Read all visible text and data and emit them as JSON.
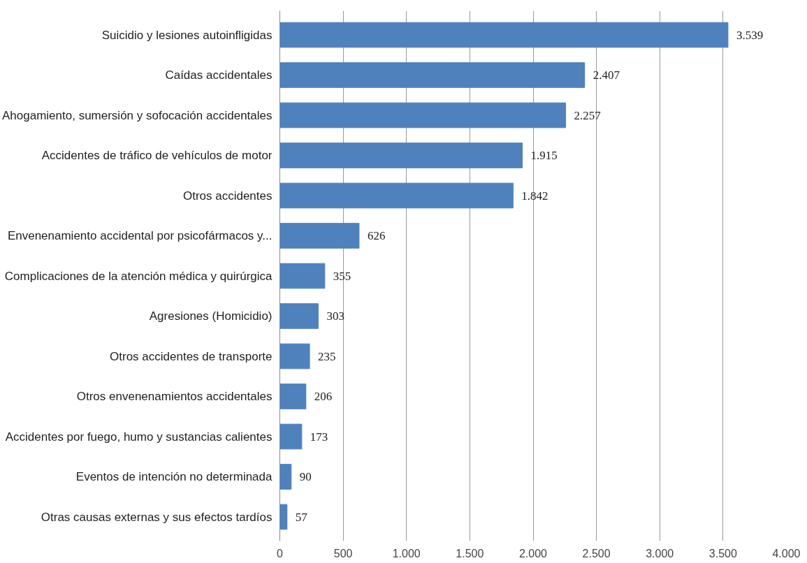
{
  "chart_data": {
    "type": "bar",
    "orientation": "horizontal",
    "categories": [
      "Suicidio y lesiones autoinfligidas",
      "Caídas accidentales",
      "Ahogamiento, sumersión y sofocación accidentales",
      "Accidentes de tráfico de vehículos de motor",
      "Otros accidentes",
      "Envenenamiento accidental por psicofármacos y...",
      "Complicaciones de la atención médica y quirúrgica",
      "Agresiones (Homicidio)",
      "Otros accidentes de transporte",
      "Otros envenenamientos accidentales",
      "Accidentes por fuego, humo y sustancias calientes",
      "Eventos de intención no determinada",
      "Otras causas externas y sus efectos tardíos"
    ],
    "values": [
      3539,
      2407,
      2257,
      1915,
      1842,
      626,
      355,
      303,
      235,
      206,
      173,
      90,
      57
    ],
    "value_labels": [
      "3.539",
      "2.407",
      "2.257",
      "1.915",
      "1.842",
      "626",
      "355",
      "303",
      "235",
      "206",
      "173",
      "90",
      "57"
    ],
    "color": "#4f81bd",
    "xlim": [
      0,
      4000
    ],
    "xticks": [
      0,
      500,
      {
        "value": 1000,
        "label": "1.000"
      },
      {
        "value": 1500,
        "label": "1.500"
      },
      {
        "value": 2000,
        "label": "2.000"
      },
      {
        "value": 2500,
        "label": "2.500"
      },
      {
        "value": 3000,
        "label": "3.000"
      },
      {
        "value": 3500,
        "label": "3.500"
      },
      {
        "value": 4000,
        "label": "4.000"
      }
    ],
    "grid": "x"
  }
}
